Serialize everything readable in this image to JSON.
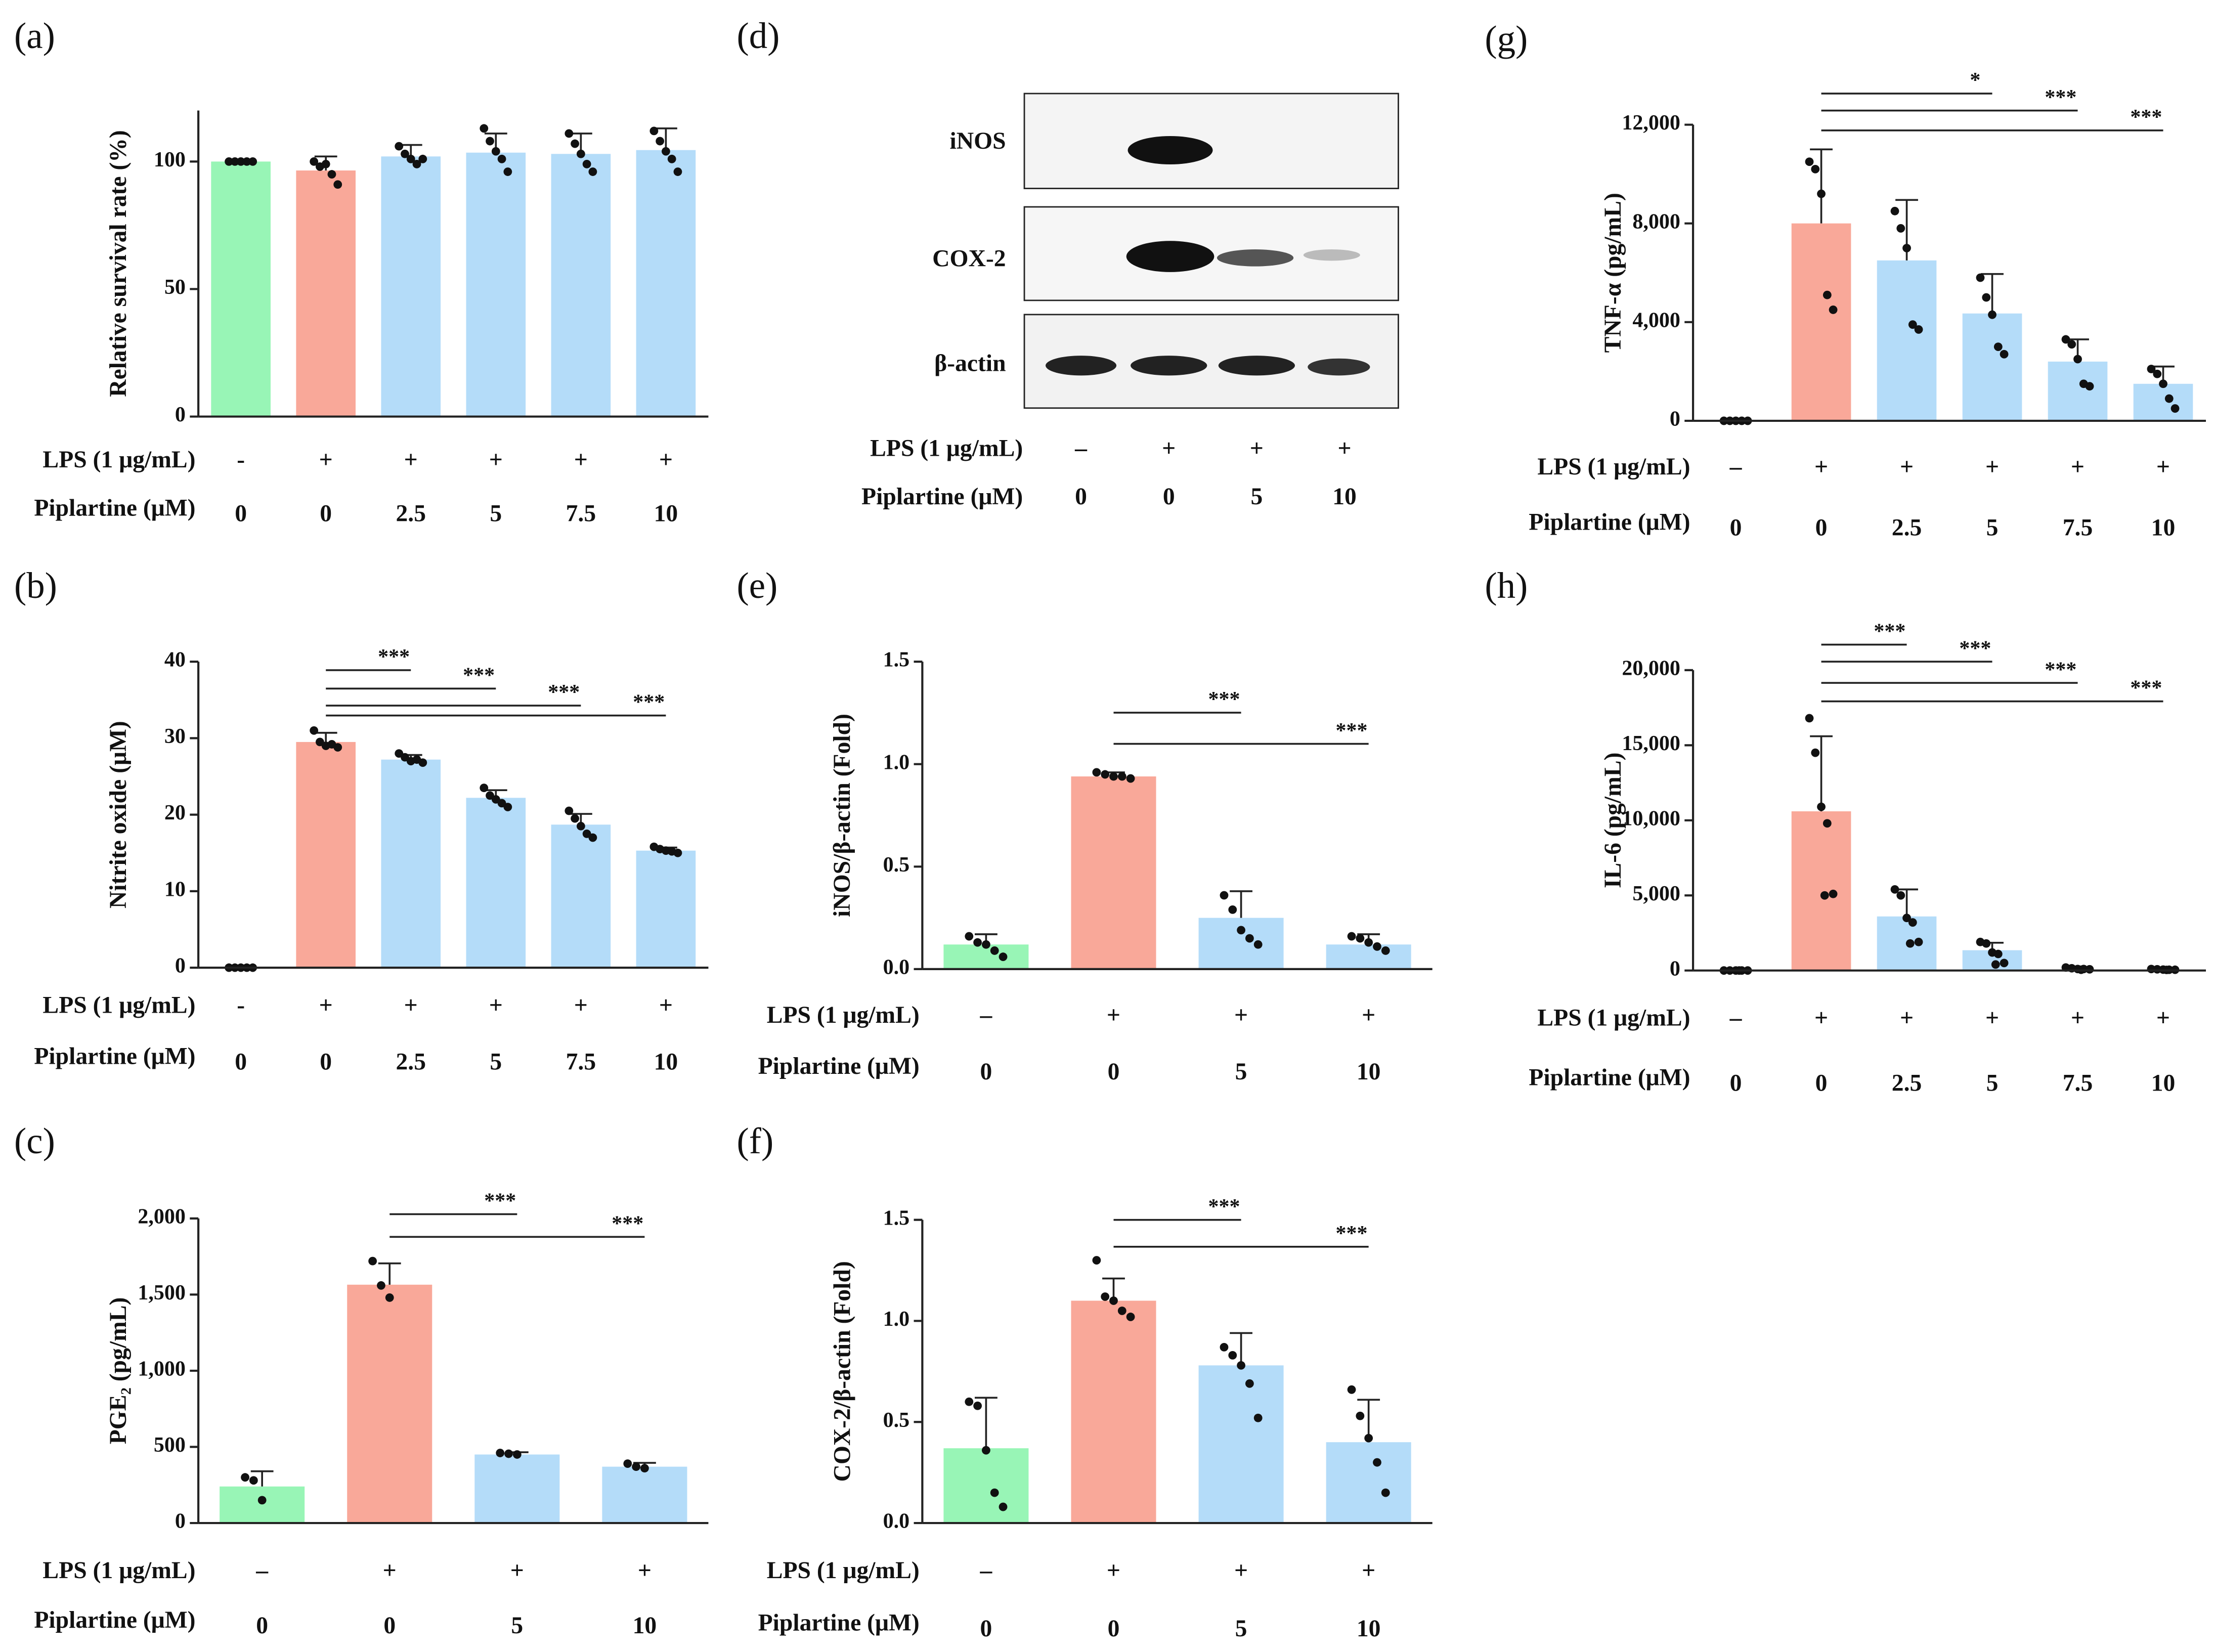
{
  "chart_data": [
    {
      "type": "bar",
      "panel": "(a)",
      "ylabel": "Relative survival rate (%)",
      "row_labels": [
        "LPS (1 μg/mL)",
        "Piplartine (μM)"
      ],
      "lps": [
        "-",
        "+",
        "+",
        "+",
        "+",
        "+"
      ],
      "piplartine": [
        "0",
        "0",
        "2.5",
        "5",
        "7.5",
        "10"
      ],
      "values": [
        100,
        96.5,
        102,
        103.5,
        103,
        104.5
      ],
      "errors": [
        0,
        5.5,
        4.5,
        7.5,
        8,
        8.5
      ],
      "points": [
        [
          100,
          100,
          100,
          100,
          100
        ],
        [
          100,
          98,
          99,
          95,
          91
        ],
        [
          106,
          103,
          101,
          99,
          101
        ],
        [
          113,
          108,
          104,
          101,
          96
        ],
        [
          111,
          107,
          103,
          99,
          96
        ],
        [
          112,
          108,
          104,
          101,
          96
        ]
      ],
      "colors": [
        "#98f5b6",
        "#f9a899",
        "#b4dcf9",
        "#b4dcf9",
        "#b4dcf9",
        "#b4dcf9"
      ],
      "ylim": [
        0,
        120
      ],
      "yticks": [
        0,
        50,
        100
      ],
      "significance": []
    },
    {
      "type": "bar",
      "panel": "(b)",
      "ylabel": "Nitrite oxide (μM)",
      "row_labels": [
        "LPS (1 μg/mL)",
        "Piplartine (μM)"
      ],
      "lps": [
        "-",
        "+",
        "+",
        "+",
        "+",
        "+"
      ],
      "piplartine": [
        "0",
        "0",
        "2.5",
        "5",
        "7.5",
        "10"
      ],
      "values": [
        0,
        29.5,
        27.2,
        22.2,
        18.7,
        15.3
      ],
      "errors": [
        0,
        1.2,
        0.6,
        1.0,
        1.4,
        0.4
      ],
      "points": [
        [
          0,
          0,
          0,
          0,
          0
        ],
        [
          31,
          29.5,
          29,
          29.2,
          28.8
        ],
        [
          28,
          27.5,
          27,
          27.2,
          26.8
        ],
        [
          23.5,
          22.5,
          22,
          21.5,
          21
        ],
        [
          20.5,
          19.5,
          18.5,
          17.5,
          17
        ],
        [
          15.8,
          15.5,
          15.3,
          15.2,
          15.0
        ]
      ],
      "colors": [
        "#98f5b6",
        "#f9a899",
        "#b4dcf9",
        "#b4dcf9",
        "#b4dcf9",
        "#b4dcf9"
      ],
      "ylim": [
        0,
        40
      ],
      "yticks": [
        0,
        10,
        20,
        30,
        40
      ],
      "significance": [
        {
          "from": 1,
          "to": 2,
          "label": "***"
        },
        {
          "from": 1,
          "to": 3,
          "label": "***"
        },
        {
          "from": 1,
          "to": 4,
          "label": "***"
        },
        {
          "from": 1,
          "to": 5,
          "label": "***"
        }
      ]
    },
    {
      "type": "bar",
      "panel": "(c)",
      "ylabel": "PGE₂ (pg/mL)",
      "row_labels": [
        "LPS (1 μg/mL)",
        "Piplartine (μM)"
      ],
      "lps": [
        "–",
        "+",
        "+",
        "+"
      ],
      "piplartine": [
        "0",
        "0",
        "5",
        "10"
      ],
      "values": [
        240,
        1565,
        450,
        370
      ],
      "errors": [
        100,
        140,
        15,
        25
      ],
      "points": [
        [
          300,
          280,
          150
        ],
        [
          1720,
          1560,
          1480
        ],
        [
          460,
          455,
          450
        ],
        [
          390,
          370,
          360
        ]
      ],
      "colors": [
        "#98f5b6",
        "#f9a899",
        "#b4dcf9",
        "#b4dcf9"
      ],
      "ylim": [
        0,
        2000
      ],
      "yticks": [
        0,
        500,
        {
          "value": 1000,
          "label": "1,000"
        },
        {
          "value": 1500,
          "label": "1,500"
        },
        {
          "value": 2000,
          "label": "2,000"
        }
      ],
      "significance": [
        {
          "from": 1,
          "to": 2,
          "label": "***"
        },
        {
          "from": 1,
          "to": 3,
          "label": "***"
        }
      ]
    },
    {
      "type": "bar",
      "panel": "(e)",
      "ylabel": "iNOS/β-actin (Fold)",
      "row_labels": [
        "LPS (1 μg/mL)",
        "Piplartine (μM)"
      ],
      "lps": [
        "–",
        "+",
        "+",
        "+"
      ],
      "piplartine": [
        "0",
        "0",
        "5",
        "10"
      ],
      "values": [
        0.12,
        0.94,
        0.25,
        0.12
      ],
      "errors": [
        0.05,
        0.02,
        0.13,
        0.05
      ],
      "points": [
        [
          0.16,
          0.13,
          0.12,
          0.09,
          0.06
        ],
        [
          0.96,
          0.95,
          0.94,
          0.94,
          0.93
        ],
        [
          0.36,
          0.29,
          0.19,
          0.15,
          0.12
        ],
        [
          0.16,
          0.15,
          0.13,
          0.11,
          0.09
        ]
      ],
      "colors": [
        "#98f5b6",
        "#f9a899",
        "#b4dcf9",
        "#b4dcf9"
      ],
      "ylim": [
        0,
        1.5
      ],
      "yticks": [
        {
          "value": 0,
          "label": "0.0"
        },
        0.5,
        {
          "value": 1,
          "label": "1.0"
        },
        1.5
      ],
      "significance": [
        {
          "from": 1,
          "to": 2,
          "label": "***"
        },
        {
          "from": 1,
          "to": 3,
          "label": "***"
        }
      ]
    },
    {
      "type": "bar",
      "panel": "(f)",
      "ylabel": "COX-2/β-actin (Fold)",
      "row_labels": [
        "LPS (1 μg/mL)",
        "Piplartine (μM)"
      ],
      "lps": [
        "–",
        "+",
        "+",
        "+"
      ],
      "piplartine": [
        "0",
        "0",
        "5",
        "10"
      ],
      "values": [
        0.37,
        1.1,
        0.78,
        0.4
      ],
      "errors": [
        0.25,
        0.11,
        0.16,
        0.21
      ],
      "points": [
        [
          0.6,
          0.58,
          0.36,
          0.15,
          0.08
        ],
        [
          1.3,
          1.12,
          1.1,
          1.05,
          1.02
        ],
        [
          0.87,
          0.83,
          0.78,
          0.69,
          0.52
        ],
        [
          0.66,
          0.53,
          0.42,
          0.3,
          0.15
        ]
      ],
      "colors": [
        "#98f5b6",
        "#f9a899",
        "#b4dcf9",
        "#b4dcf9"
      ],
      "ylim": [
        0,
        1.5
      ],
      "yticks": [
        {
          "value": 0,
          "label": "0.0"
        },
        0.5,
        {
          "value": 1,
          "label": "1.0"
        },
        1.5
      ],
      "significance": [
        {
          "from": 1,
          "to": 2,
          "label": "***"
        },
        {
          "from": 1,
          "to": 3,
          "label": "***"
        }
      ]
    },
    {
      "type": "bar",
      "panel": "(g)",
      "ylabel": "TNF-α (pg/mL)",
      "row_labels": [
        "LPS (1 μg/mL)",
        "Piplartine (μM)"
      ],
      "lps": [
        "–",
        "+",
        "+",
        "+",
        "+",
        "+"
      ],
      "piplartine": [
        "0",
        "0",
        "2.5",
        "5",
        "7.5",
        "10"
      ],
      "values": [
        0,
        8000,
        6500,
        4350,
        2400,
        1500
      ],
      "errors": [
        0,
        3000,
        2450,
        1600,
        900,
        700
      ],
      "points": [
        [
          0,
          0,
          0,
          0,
          0
        ],
        [
          10500,
          10200,
          9200,
          5100,
          4500
        ],
        [
          8500,
          7800,
          7000,
          3900,
          3700
        ],
        [
          5800,
          5000,
          4300,
          3000,
          2700
        ],
        [
          3300,
          3100,
          2500,
          1500,
          1400
        ],
        [
          2100,
          1900,
          1500,
          900,
          500
        ]
      ],
      "colors": [
        "#98f5b6",
        "#f9a899",
        "#b4dcf9",
        "#b4dcf9",
        "#b4dcf9",
        "#b4dcf9"
      ],
      "ylim": [
        0,
        12000
      ],
      "yticks": [
        0,
        {
          "value": 4000,
          "label": "4,000"
        },
        {
          "value": 8000,
          "label": "8,000"
        },
        {
          "value": 12000,
          "label": "12,000"
        }
      ],
      "significance": [
        {
          "from": 1,
          "to": 3,
          "label": "*"
        },
        {
          "from": 1,
          "to": 4,
          "label": "***"
        },
        {
          "from": 1,
          "to": 5,
          "label": "***"
        }
      ]
    },
    {
      "type": "bar",
      "panel": "(h)",
      "ylabel": "IL-6 (pg/mL)",
      "row_labels": [
        "LPS (1 μg/mL)",
        "Piplartine (μM)"
      ],
      "lps": [
        "–",
        "+",
        "+",
        "+",
        "+",
        "+"
      ],
      "piplartine": [
        "0",
        "0",
        "2.5",
        "5",
        "7.5",
        "10"
      ],
      "values": [
        0,
        10600,
        3600,
        1350,
        0,
        0
      ],
      "errors": [
        0,
        5000,
        1800,
        500,
        0,
        0
      ],
      "points": [
        [
          0,
          0,
          0,
          0,
          0,
          0
        ],
        [
          16800,
          14500,
          10900,
          9800,
          5100,
          5000
        ],
        [
          5400,
          5000,
          3500,
          3200,
          1900,
          1800
        ],
        [
          1900,
          1800,
          1200,
          1100,
          500,
          400
        ],
        [
          200,
          150,
          100,
          100,
          80,
          50
        ],
        [
          100,
          80,
          60,
          50,
          50,
          40
        ]
      ],
      "colors": [
        "#98f5b6",
        "#f9a899",
        "#b4dcf9",
        "#b4dcf9",
        "#b4dcf9",
        "#b4dcf9"
      ],
      "ylim": [
        0,
        20000
      ],
      "yticks": [
        0,
        {
          "value": 5000,
          "label": "5,000"
        },
        {
          "value": 10000,
          "label": "10,000"
        },
        {
          "value": 15000,
          "label": "15,000"
        },
        {
          "value": 20000,
          "label": "20,000"
        }
      ],
      "significance": [
        {
          "from": 1,
          "to": 2,
          "label": "***"
        },
        {
          "from": 1,
          "to": 3,
          "label": "***"
        },
        {
          "from": 1,
          "to": 4,
          "label": "***"
        },
        {
          "from": 1,
          "to": 5,
          "label": "***"
        }
      ]
    }
  ],
  "blot": {
    "panel": "(d)",
    "bands": [
      "iNOS",
      "COX-2",
      "β-actin"
    ],
    "row_labels": [
      "LPS (1 μg/mL)",
      "Piplartine (μM)"
    ],
    "lps": [
      "–",
      "+",
      "+",
      "+"
    ],
    "piplartine": [
      "0",
      "0",
      "5",
      "10"
    ]
  }
}
